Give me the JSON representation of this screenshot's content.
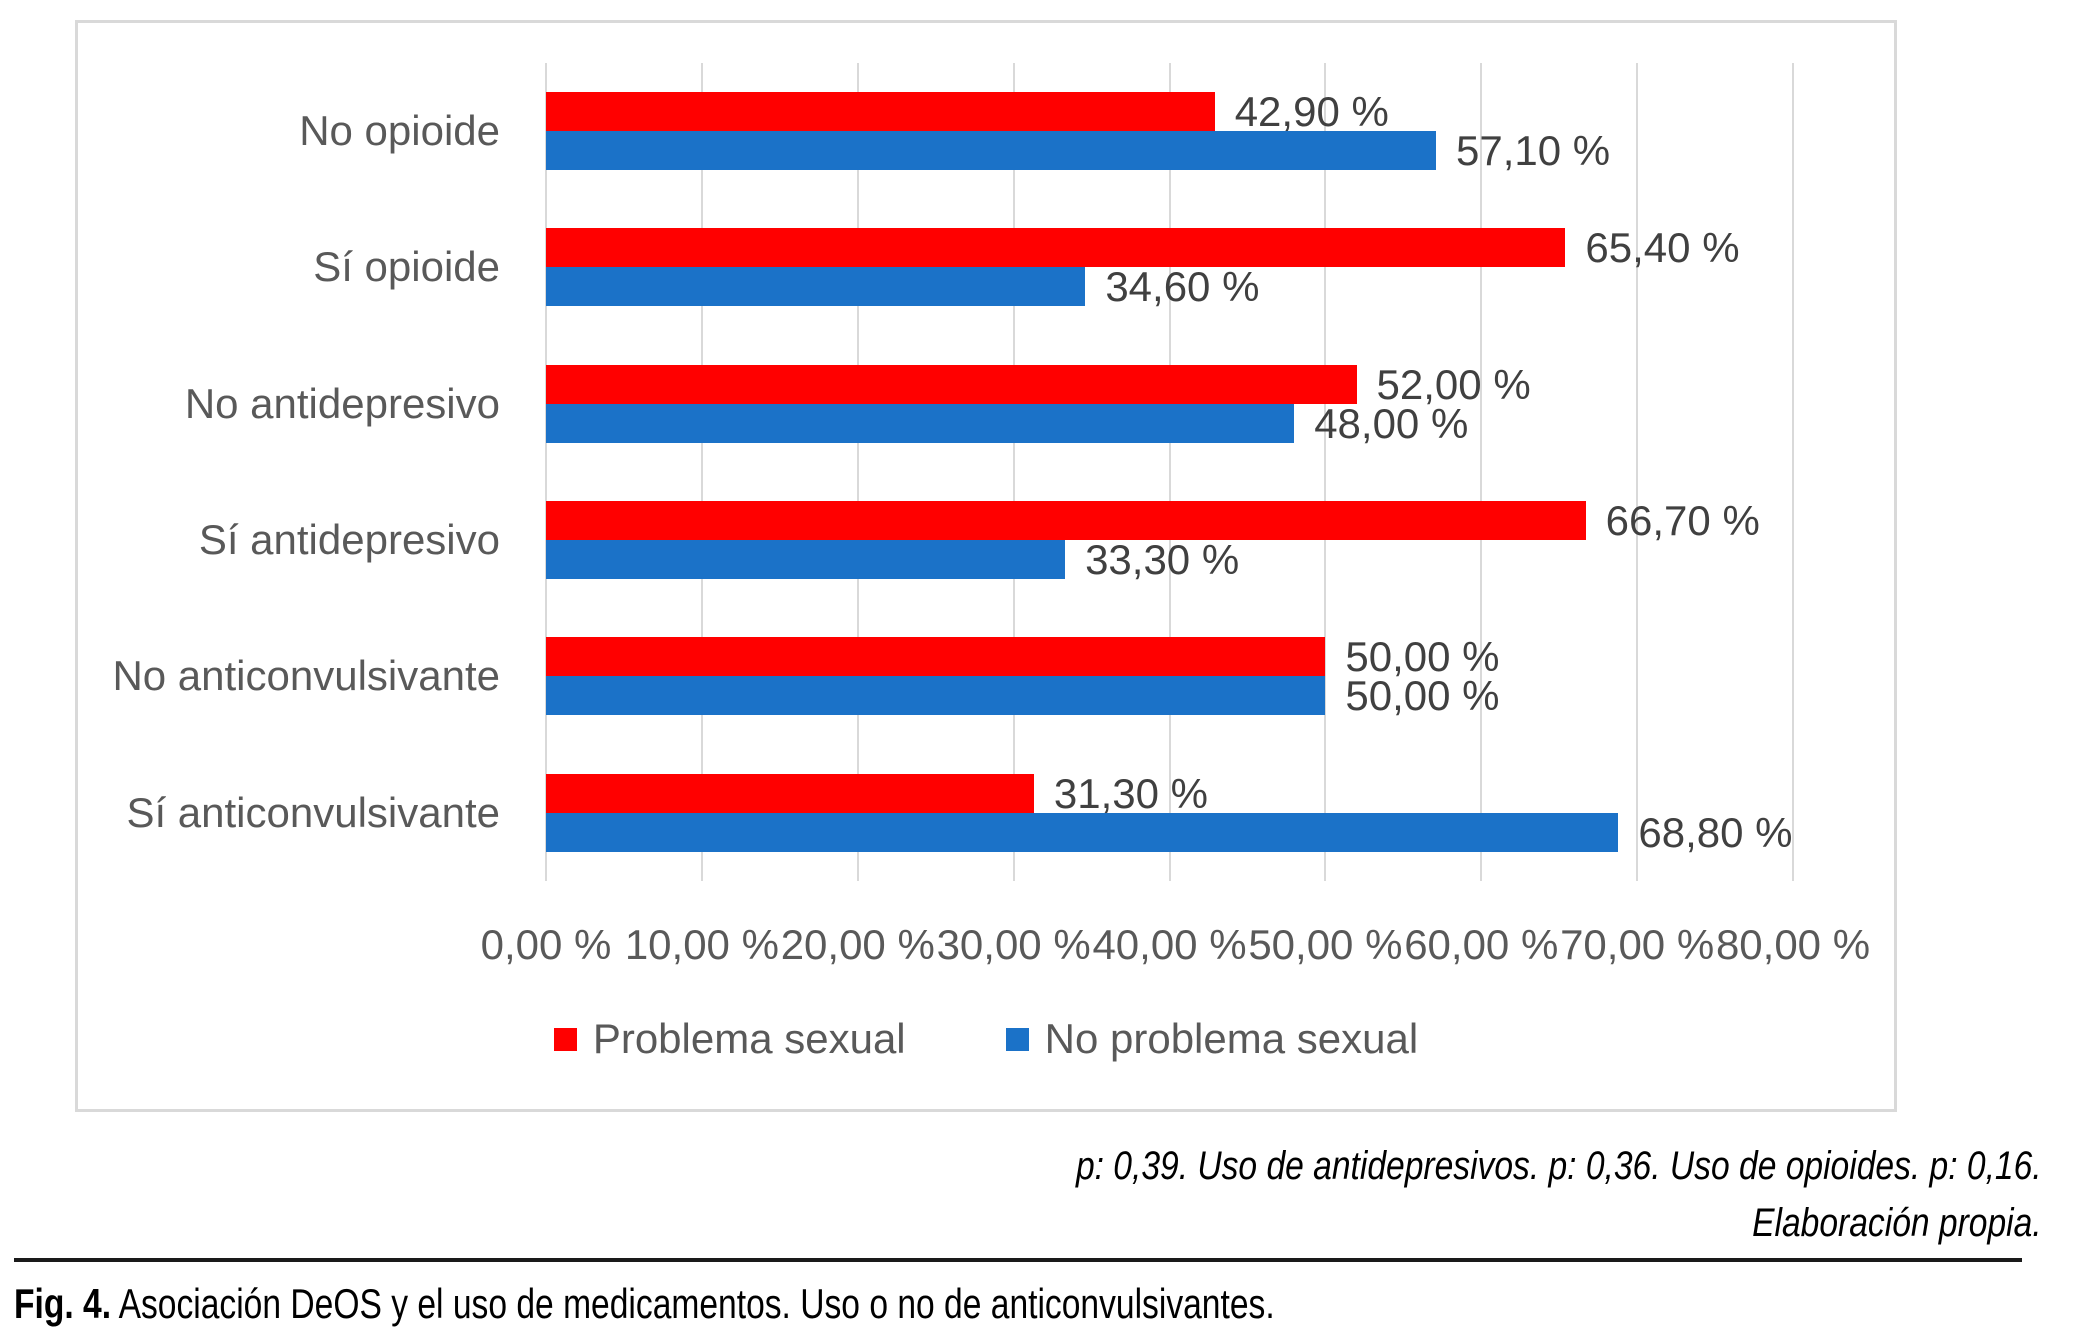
{
  "chart_data": {
    "type": "bar",
    "orientation": "horizontal",
    "title": "",
    "categories": [
      "No opioide",
      "Sí opioide",
      "No antidepresivo",
      "Sí antidepresivo",
      "No anticonvulsivante",
      "Sí anticonvulsivante"
    ],
    "series": [
      {
        "name": "Problema sexual",
        "color": "#ff0000",
        "values": [
          42.9,
          65.4,
          52.0,
          66.7,
          50.0,
          31.3
        ],
        "labels": [
          "42,90 %",
          "65,40 %",
          "52,00 %",
          "66,70 %",
          "50,00 %",
          "31,30 %"
        ]
      },
      {
        "name": "No problema sexual",
        "color": "#1b72c8",
        "values": [
          57.1,
          34.6,
          48.0,
          33.3,
          50.0,
          68.8
        ],
        "labels": [
          "57,10 %",
          "34,60 %",
          "48,00 %",
          "33,30 %",
          "50,00 %",
          "68,80 %"
        ]
      }
    ],
    "x_axis": {
      "min": 0,
      "max": 80,
      "tick_labels": [
        "0,00 %",
        "10,00 %",
        "20,00 %",
        "30,00 %",
        "40,00 %",
        "50,00 %",
        "60,00 %",
        "70,00 %",
        "80,00 %"
      ]
    },
    "grid": true,
    "gridline_color": "#d9d9d9",
    "legend_position": "bottom"
  },
  "legend": {
    "items": [
      {
        "label": "Problema sexual",
        "color": "#ff0000"
      },
      {
        "label": "No problema sexual",
        "color": "#1b72c8"
      }
    ]
  },
  "footnote": {
    "line1": "p: 0,39. Uso de antidepresivos. p: 0,36. Uso de opioides. p: 0,16.",
    "line2": "Elaboración propia."
  },
  "caption": {
    "prefix": "Fig. 4.",
    "text": " Asociación DeOS y el uso de medicamentos. Uso o no de anticonvulsivantes."
  }
}
